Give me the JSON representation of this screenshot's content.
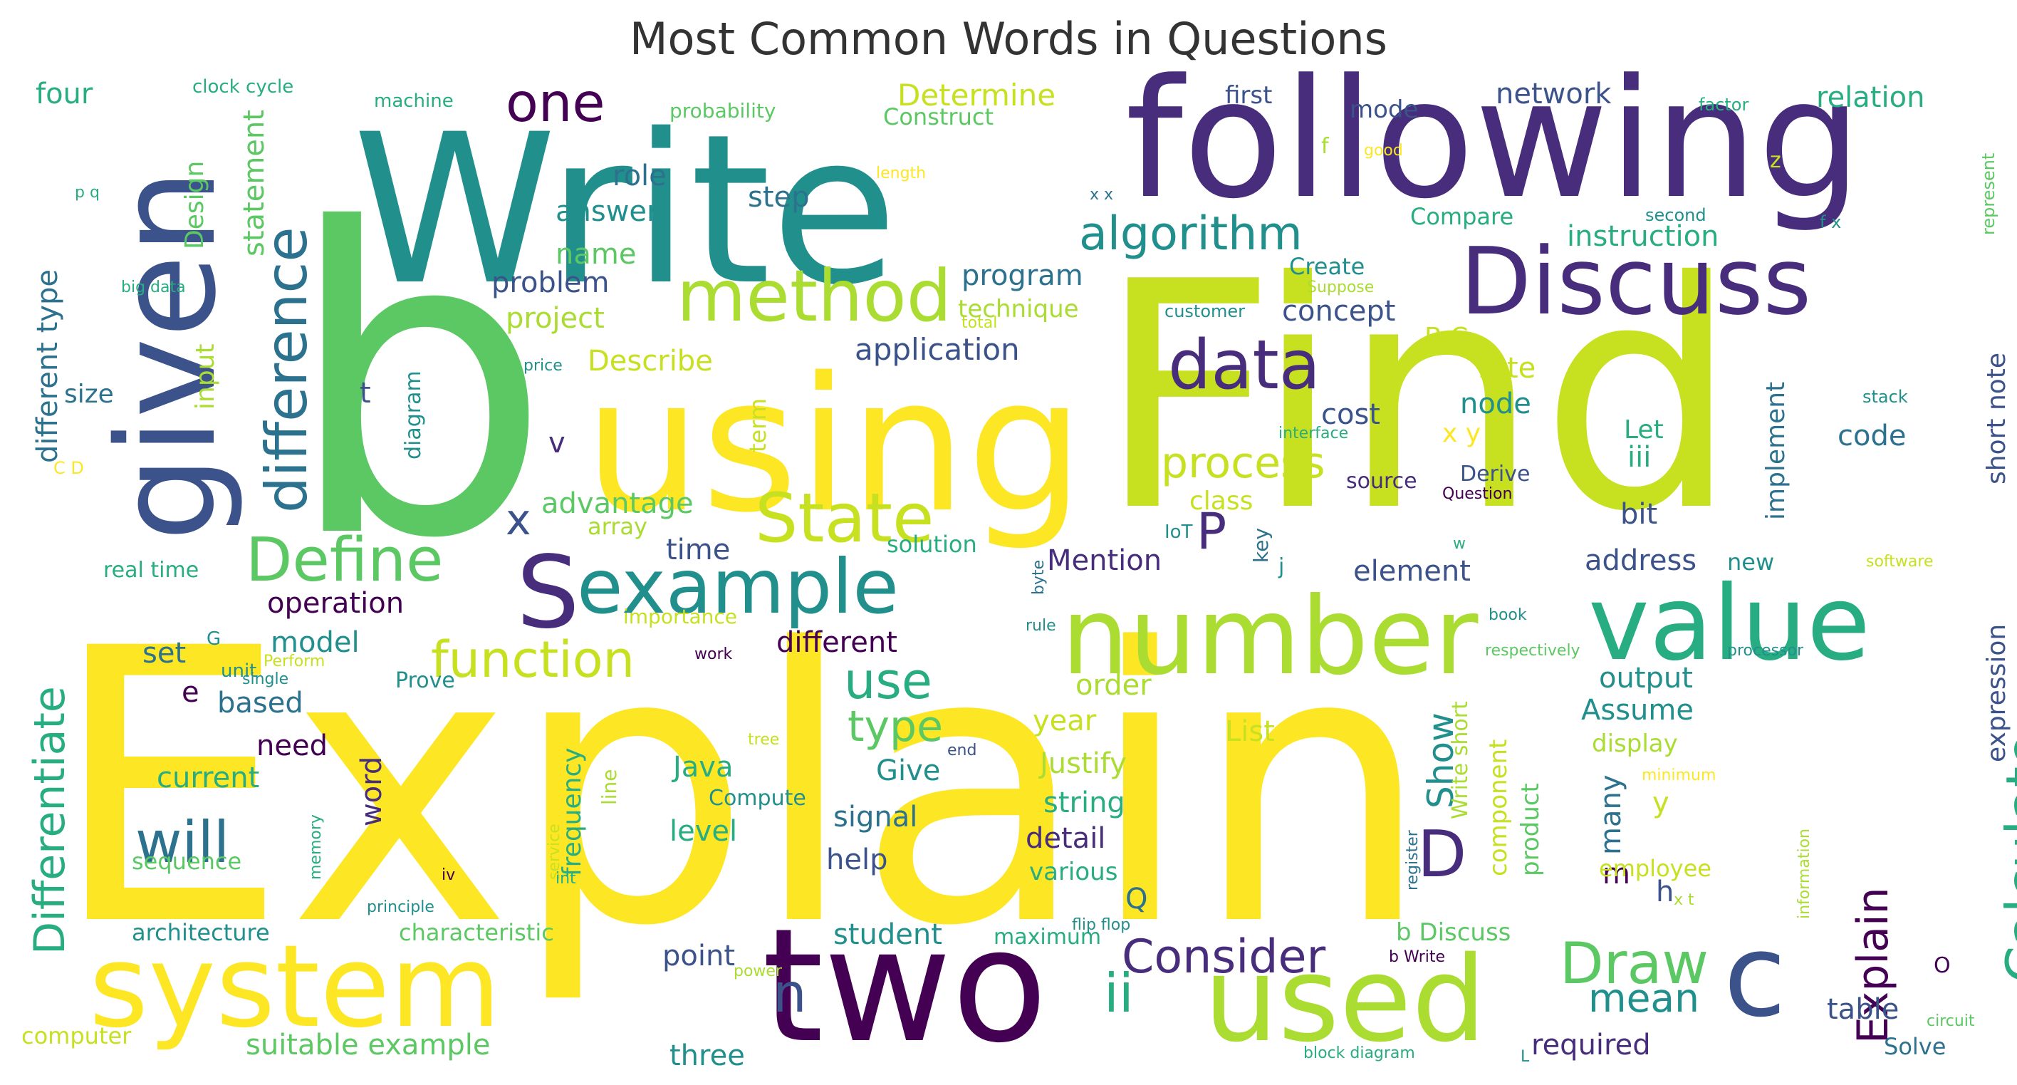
{
  "chart_data": {
    "type": "wordcloud",
    "title": "Most Common Words in Questions",
    "colormap": "viridis",
    "words": [
      {
        "text": "b",
        "weight": 100
      },
      {
        "text": "Explain",
        "weight": 98
      },
      {
        "text": "Find",
        "weight": 80
      },
      {
        "text": "using",
        "weight": 60
      },
      {
        "text": "Write",
        "weight": 58
      },
      {
        "text": "following",
        "weight": 50
      },
      {
        "text": "given",
        "weight": 40
      },
      {
        "text": "two",
        "weight": 38
      },
      {
        "text": "system",
        "weight": 30
      },
      {
        "text": "number",
        "weight": 28
      },
      {
        "text": "value",
        "weight": 26
      },
      {
        "text": "Discuss",
        "weight": 26
      },
      {
        "text": "used",
        "weight": 26
      },
      {
        "text": "c",
        "weight": 25
      },
      {
        "text": "S",
        "weight": 20
      },
      {
        "text": "example",
        "weight": 17
      },
      {
        "text": "method",
        "weight": 16
      },
      {
        "text": "data",
        "weight": 15
      },
      {
        "text": "difference",
        "weight": 14
      },
      {
        "text": "State",
        "weight": 14
      },
      {
        "text": "Define",
        "weight": 13
      },
      {
        "text": "will",
        "weight": 12
      },
      {
        "text": "one",
        "weight": 11
      },
      {
        "text": "Calculate",
        "weight": 11
      },
      {
        "text": "function",
        "weight": 11
      },
      {
        "text": "Draw",
        "weight": 11
      },
      {
        "text": "algorithm",
        "weight": 10
      },
      {
        "text": "process",
        "weight": 10
      },
      {
        "text": "Consider",
        "weight": 10
      },
      {
        "text": "D",
        "weight": 10
      },
      {
        "text": "use",
        "weight": 10
      },
      {
        "text": "n",
        "weight": 10
      },
      {
        "text": "ii",
        "weight": 10
      },
      {
        "text": "Differentiate",
        "weight": 9
      },
      {
        "text": "P",
        "weight": 9
      },
      {
        "text": "Explain",
        "weight": 9
      },
      {
        "text": "type",
        "weight": 9
      },
      {
        "text": "mean",
        "weight": 8
      },
      {
        "text": "Show",
        "weight": 8
      },
      {
        "text": "x",
        "weight": 8
      },
      {
        "text": "Determine",
        "weight": 6
      },
      {
        "text": "application",
        "weight": 6
      },
      {
        "text": "statement",
        "weight": 6
      },
      {
        "text": "instruction",
        "weight": 6
      },
      {
        "text": "advantage",
        "weight": 6
      },
      {
        "text": "operation",
        "weight": 6
      },
      {
        "text": "Describe",
        "weight": 6
      },
      {
        "text": "network",
        "weight": 6
      },
      {
        "text": "relation",
        "weight": 6
      },
      {
        "text": "different type",
        "weight": 6
      },
      {
        "text": "expression",
        "weight": 6
      },
      {
        "text": "short note",
        "weight": 6
      },
      {
        "text": "many",
        "weight": 6
      },
      {
        "text": "implement",
        "weight": 6
      },
      {
        "text": "frequency",
        "weight": 6
      },
      {
        "text": "model",
        "weight": 6
      },
      {
        "text": "different",
        "weight": 6
      },
      {
        "text": "Mention",
        "weight": 6
      },
      {
        "text": "cost",
        "weight": 6
      },
      {
        "text": "suitable example",
        "weight": 6
      },
      {
        "text": "problem",
        "weight": 6
      },
      {
        "text": "project",
        "weight": 6
      },
      {
        "text": "program",
        "weight": 6
      },
      {
        "text": "answer",
        "weight": 6
      },
      {
        "text": "concept",
        "weight": 6
      },
      {
        "text": "address",
        "weight": 6
      },
      {
        "text": "element",
        "weight": 6
      },
      {
        "text": "output",
        "weight": 6
      },
      {
        "text": "Assume",
        "weight": 6
      },
      {
        "text": "order",
        "weight": 6
      },
      {
        "text": "Justify",
        "weight": 6
      },
      {
        "text": "string",
        "weight": 6
      },
      {
        "text": "signal",
        "weight": 6
      },
      {
        "text": "student",
        "weight": 6
      },
      {
        "text": "detail",
        "weight": 6
      },
      {
        "text": "required",
        "weight": 6
      },
      {
        "text": "three",
        "weight": 6
      },
      {
        "text": "point",
        "weight": 6
      },
      {
        "text": "table",
        "weight": 6
      },
      {
        "text": "code",
        "weight": 6
      },
      {
        "text": "bit",
        "weight": 6
      },
      {
        "text": "node",
        "weight": 6
      },
      {
        "text": "rate",
        "weight": 6
      },
      {
        "text": "Give",
        "weight": 6
      },
      {
        "text": "List",
        "weight": 6
      },
      {
        "text": "year",
        "weight": 6
      },
      {
        "text": "help",
        "weight": 6
      },
      {
        "text": "level",
        "weight": 6
      },
      {
        "text": "Java",
        "weight": 6
      },
      {
        "text": "time",
        "weight": 6
      },
      {
        "text": "role",
        "weight": 6
      },
      {
        "text": "step",
        "weight": 6
      },
      {
        "text": "name",
        "weight": 6
      },
      {
        "text": "input",
        "weight": 6
      },
      {
        "text": "Design",
        "weight": 6
      },
      {
        "text": "four",
        "weight": 6
      },
      {
        "text": "size",
        "weight": 6
      },
      {
        "text": "set",
        "weight": 6
      },
      {
        "text": "based",
        "weight": 6
      },
      {
        "text": "need",
        "weight": 6
      },
      {
        "text": "current",
        "weight": 6
      },
      {
        "text": "word",
        "weight": 6
      },
      {
        "text": "Q",
        "weight": 6
      },
      {
        "text": "h",
        "weight": 6
      },
      {
        "text": "iii",
        "weight": 6
      },
      {
        "text": "Let",
        "weight": 6
      },
      {
        "text": "x y",
        "weight": 6
      },
      {
        "text": "B C",
        "weight": 6
      },
      {
        "text": "m",
        "weight": 6
      },
      {
        "text": "y",
        "weight": 6
      },
      {
        "text": "e",
        "weight": 6
      },
      {
        "text": "t",
        "weight": 6
      },
      {
        "text": "v",
        "weight": 6
      },
      {
        "text": "technique",
        "weight": 4
      },
      {
        "text": "Construct",
        "weight": 4
      },
      {
        "text": "Compare",
        "weight": 4
      },
      {
        "text": "Create",
        "weight": 4
      },
      {
        "text": "first",
        "weight": 4
      },
      {
        "text": "mode",
        "weight": 4
      },
      {
        "text": "class",
        "weight": 4
      },
      {
        "text": "source",
        "weight": 4
      },
      {
        "text": "Derive",
        "weight": 4
      },
      {
        "text": "array",
        "weight": 4
      },
      {
        "text": "solution",
        "weight": 4
      },
      {
        "text": "term",
        "weight": 4
      },
      {
        "text": "diagram",
        "weight": 4
      },
      {
        "text": "clock cycle",
        "weight": 4
      },
      {
        "text": "machine",
        "weight": 4
      },
      {
        "text": "probability",
        "weight": 4
      },
      {
        "text": "real time",
        "weight": 4
      },
      {
        "text": "Prove",
        "weight": 4
      },
      {
        "text": "architecture",
        "weight": 4
      },
      {
        "text": "characteristic",
        "weight": 4
      },
      {
        "text": "sequence",
        "weight": 4
      },
      {
        "text": "various",
        "weight": 4
      },
      {
        "text": "maximum",
        "weight": 4
      },
      {
        "text": "computer",
        "weight": 4
      },
      {
        "text": "display",
        "weight": 4
      },
      {
        "text": "employee",
        "weight": 4
      },
      {
        "text": "component",
        "weight": 4
      },
      {
        "text": "product",
        "weight": 4
      },
      {
        "text": "Write short",
        "weight": 4
      },
      {
        "text": "b Discuss",
        "weight": 4
      },
      {
        "text": "Solve",
        "weight": 4
      },
      {
        "text": "new",
        "weight": 4
      },
      {
        "text": "Compute",
        "weight": 4
      },
      {
        "text": "importance",
        "weight": 4
      },
      {
        "text": "line",
        "weight": 4
      },
      {
        "text": "key",
        "weight": 4
      },
      {
        "text": "IoT",
        "weight": 4
      },
      {
        "text": "j",
        "weight": 4
      },
      {
        "text": "O",
        "weight": 4
      },
      {
        "text": "G",
        "weight": 4
      },
      {
        "text": "unit",
        "weight": 4
      },
      {
        "text": "f",
        "weight": 4
      },
      {
        "text": "z",
        "weight": 4
      },
      {
        "text": "C D",
        "weight": 3
      },
      {
        "text": "length",
        "weight": 3
      },
      {
        "text": "good",
        "weight": 3
      },
      {
        "text": "factor",
        "weight": 3
      },
      {
        "text": "second",
        "weight": 3
      },
      {
        "text": "f x",
        "weight": 3
      },
      {
        "text": "represent",
        "weight": 3
      },
      {
        "text": "customer",
        "weight": 3
      },
      {
        "text": "Suppose",
        "weight": 3
      },
      {
        "text": "stack",
        "weight": 3
      },
      {
        "text": "price",
        "weight": 3
      },
      {
        "text": "total",
        "weight": 3
      },
      {
        "text": "interface",
        "weight": 3
      },
      {
        "text": "Question",
        "weight": 3
      },
      {
        "text": "software",
        "weight": 3
      },
      {
        "text": "byte",
        "weight": 3
      },
      {
        "text": "rule",
        "weight": 3
      },
      {
        "text": "book",
        "weight": 3
      },
      {
        "text": "respectively",
        "weight": 3
      },
      {
        "text": "processor",
        "weight": 3
      },
      {
        "text": "work",
        "weight": 3
      },
      {
        "text": "single",
        "weight": 3
      },
      {
        "text": "Perform",
        "weight": 3
      },
      {
        "text": "flip flop",
        "weight": 3
      },
      {
        "text": "tree",
        "weight": 3
      },
      {
        "text": "end",
        "weight": 3
      },
      {
        "text": "minimum",
        "weight": 3
      },
      {
        "text": "memory",
        "weight": 3
      },
      {
        "text": "service",
        "weight": 3
      },
      {
        "text": "int",
        "weight": 3
      },
      {
        "text": "register",
        "weight": 3
      },
      {
        "text": "information",
        "weight": 3
      },
      {
        "text": "principle",
        "weight": 3
      },
      {
        "text": "power",
        "weight": 3
      },
      {
        "text": "b Write",
        "weight": 3
      },
      {
        "text": "block diagram",
        "weight": 3
      },
      {
        "text": "circuit",
        "weight": 3
      },
      {
        "text": "big data",
        "weight": 3
      },
      {
        "text": "p q",
        "weight": 3
      },
      {
        "text": "x x",
        "weight": 3
      },
      {
        "text": "x t",
        "weight": 3
      },
      {
        "text": "iv",
        "weight": 3
      },
      {
        "text": "w",
        "weight": 3
      },
      {
        "text": "L",
        "weight": 3
      }
    ]
  }
}
